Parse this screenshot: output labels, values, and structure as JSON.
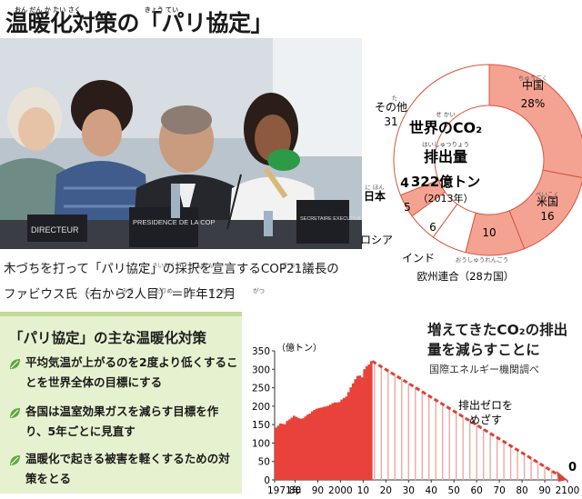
{
  "title": {
    "text": "温暖化対策の「パリ協定」",
    "ruby": "おん だん か たい さく　　　　　　　　　　きょう てい"
  },
  "caption": {
    "line1": "木づちを打って「パリ協定」の採択を宣言するCOP21議長の",
    "line2": "ファビウス氏（右から2人目）＝昨年12月",
    "ruby": [
      "き",
      "う",
      "さいたく",
      "せんげん",
      "ぎ ちょう",
      "し",
      "みぎ",
      "ふたりめ",
      "さくねん",
      "がつ"
    ]
  },
  "photo": {
    "sign_left": "DIRECTEUR",
    "sign_center": "PRESIDENCE DE LA COP",
    "sign_right": "SECRETAIRE EXECUTIVE"
  },
  "donut": {
    "center_line1": "世界のCO₂",
    "center_line2": "排出量",
    "center_ruby1": "せ かい",
    "center_ruby2": "はいしゅつりょう",
    "total": "322億トン",
    "year": "（2013年）",
    "slices": [
      {
        "label": "中国",
        "ruby": "ちゅうごく",
        "value": 28,
        "display": "28%",
        "color": "#f4a393"
      },
      {
        "label": "米国",
        "ruby": "べいこく",
        "value": 16,
        "display": "16",
        "color": "#f4a393"
      },
      {
        "label": "欧州連合（28カ国）",
        "ruby": "おうしゅうれんごう",
        "value": 10,
        "display": "10",
        "color": "#f4a393"
      },
      {
        "label": "インド",
        "ruby": "",
        "value": 6,
        "display": "6",
        "color": "#ffffff"
      },
      {
        "label": "ロシア",
        "ruby": "",
        "value": 5,
        "display": "5",
        "color": "#ffffff"
      },
      {
        "label": "日本",
        "ruby": "に ほん",
        "value": 4,
        "display": "4",
        "color": "#f4a393"
      },
      {
        "label": "その他",
        "ruby": "た",
        "value": 31,
        "display": "31",
        "color": "#ffffff"
      }
    ]
  },
  "measures": {
    "title": "「パリ協定」の主な温暖化対策",
    "title_ruby": "おも",
    "items": [
      "平均気温が上がるのを2度より低くすることを世界全体の目標にする",
      "各国は温室効果ガスを減らす目標を作り、5年ごとに見直す",
      "温暖化で起きる被害を軽くするための対策をとる"
    ]
  },
  "chart_data": {
    "type": "bar",
    "title": "増えてきたCO₂の排出量を減らすことに",
    "source": "国際エネルギー機関調べ",
    "ylabel": "（億トン）",
    "annotation": "排出ゼロをめざす",
    "annotation_line1": "排出ゼロを",
    "annotation_line2": "めざす",
    "end_label": "0",
    "ylim": [
      0,
      350
    ],
    "yticks": [
      0,
      50,
      100,
      150,
      200,
      250,
      300,
      350
    ],
    "xticks": [
      "1971年",
      "80",
      "90",
      "2000",
      "10",
      "20",
      "30",
      "40",
      "50",
      "60",
      "70",
      "80",
      "90",
      "2100"
    ],
    "historical": {
      "x_start": 1971,
      "x_end": 2013,
      "values": [
        142,
        147,
        153,
        152,
        151,
        160,
        164,
        169,
        174,
        171,
        168,
        166,
        167,
        172,
        177,
        180,
        186,
        190,
        193,
        195,
        196,
        198,
        199,
        201,
        204,
        208,
        210,
        210,
        211,
        218,
        222,
        226,
        238,
        251,
        262,
        273,
        282,
        283,
        278,
        300,
        308,
        313,
        322
      ],
      "color": "#e8423a"
    },
    "projection": {
      "x_start": 2014,
      "x_end": 2100,
      "start_value": 322,
      "end_value": 0,
      "color": "#f0a8a0"
    }
  }
}
